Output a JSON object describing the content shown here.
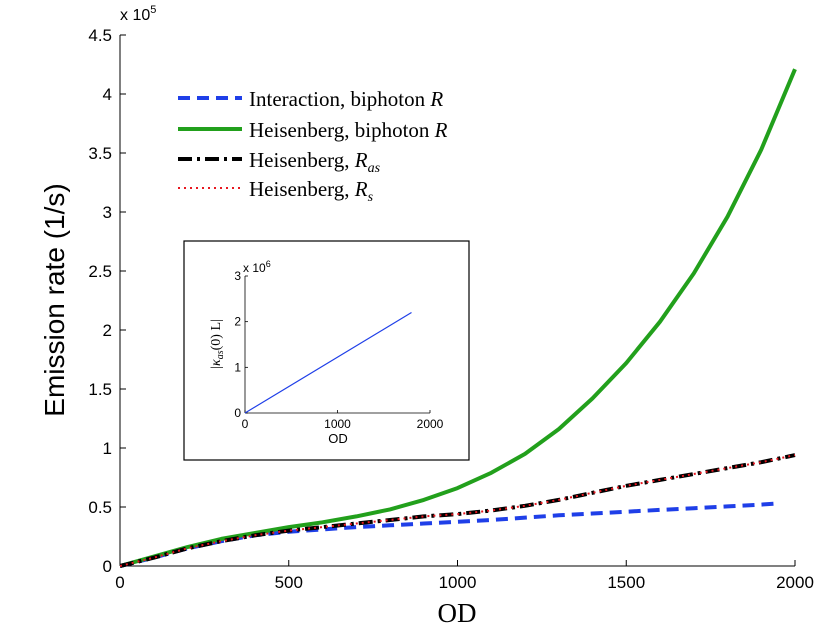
{
  "chart_data": {
    "type": "line",
    "xlabel": "OD",
    "ylabel": "Emission rate (1/s)",
    "y_multiplier": "x 10^5",
    "y_multiplier_base": "x 10",
    "y_multiplier_exp": "5",
    "xlim": [
      0,
      2000
    ],
    "ylim": [
      0,
      4.5
    ],
    "xticks": [
      0,
      500,
      1000,
      1500,
      2000
    ],
    "xtick_labels": [
      "0",
      "500",
      "1000",
      "1500",
      "2000"
    ],
    "yticks": [
      0,
      0.5,
      1,
      1.5,
      2,
      2.5,
      3,
      3.5,
      4,
      4.5
    ],
    "ytick_labels": [
      "0",
      "0.5",
      "1",
      "1.5",
      "2",
      "2.5",
      "3",
      "3.5",
      "4",
      "4.5"
    ],
    "legend": {
      "position": "top-left",
      "entries": [
        {
          "text": "Interaction, biphoton",
          "sym": "R",
          "sub": ""
        },
        {
          "text": "Heisenberg, biphoton",
          "sym": "R",
          "sub": ""
        },
        {
          "text": "Heisenberg,",
          "sym": "R",
          "sub": "as"
        },
        {
          "text": "Heisenberg,",
          "sym": "R",
          "sub": "s"
        }
      ]
    },
    "series": [
      {
        "name": "Interaction, biphoton R",
        "color": "#1f3fe8",
        "style": "dashed",
        "x": [
          0,
          100,
          200,
          300,
          400,
          500,
          600,
          700,
          800,
          900,
          1000,
          1100,
          1200,
          1300,
          1400,
          1500,
          1600,
          1700,
          1800,
          1900,
          1950
        ],
        "y": [
          0,
          0.07,
          0.15,
          0.21,
          0.26,
          0.29,
          0.31,
          0.33,
          0.345,
          0.36,
          0.375,
          0.39,
          0.41,
          0.43,
          0.445,
          0.46,
          0.475,
          0.49,
          0.505,
          0.52,
          0.53
        ]
      },
      {
        "name": "Heisenberg, biphoton R",
        "color": "#22a01c",
        "style": "solid",
        "x": [
          0,
          100,
          200,
          300,
          400,
          500,
          600,
          700,
          800,
          900,
          1000,
          1100,
          1200,
          1300,
          1400,
          1500,
          1600,
          1700,
          1800,
          1900,
          2000
        ],
        "y": [
          0,
          0.08,
          0.16,
          0.23,
          0.28,
          0.33,
          0.37,
          0.42,
          0.48,
          0.56,
          0.66,
          0.79,
          0.95,
          1.16,
          1.42,
          1.72,
          2.07,
          2.48,
          2.96,
          3.53,
          4.21
        ]
      },
      {
        "name": "Heisenberg, R_as",
        "color": "#000000",
        "style": "dashdot",
        "x": [
          0,
          100,
          200,
          300,
          400,
          500,
          600,
          700,
          800,
          900,
          1000,
          1100,
          1200,
          1300,
          1400,
          1500,
          1600,
          1700,
          1800,
          1900,
          2000
        ],
        "y": [
          0,
          0.07,
          0.15,
          0.21,
          0.26,
          0.3,
          0.33,
          0.36,
          0.39,
          0.42,
          0.44,
          0.47,
          0.51,
          0.56,
          0.62,
          0.68,
          0.73,
          0.78,
          0.83,
          0.88,
          0.94
        ]
      },
      {
        "name": "Heisenberg, R_s",
        "color": "#e8171f",
        "style": "dotted",
        "x": [
          0,
          100,
          200,
          300,
          400,
          500,
          600,
          700,
          800,
          900,
          1000,
          1100,
          1200,
          1300,
          1400,
          1500,
          1600,
          1700,
          1800,
          1900,
          2000
        ],
        "y": [
          0,
          0.07,
          0.15,
          0.21,
          0.26,
          0.3,
          0.33,
          0.36,
          0.39,
          0.42,
          0.44,
          0.47,
          0.51,
          0.56,
          0.62,
          0.68,
          0.73,
          0.78,
          0.83,
          0.88,
          0.94
        ]
      }
    ],
    "inset": {
      "type": "line",
      "xlabel": "OD",
      "ylabel": "|κ_as(0) L|",
      "ylabel_parts": {
        "bar": "|",
        "kappa": "κ",
        "sub": "as",
        "rest": "(0) L"
      },
      "y_multiplier_base": "x 10",
      "y_multiplier_exp": "6",
      "xlim": [
        0,
        2000
      ],
      "ylim": [
        0,
        3
      ],
      "xticks": [
        0,
        1000,
        2000
      ],
      "xtick_labels": [
        "0",
        "1000",
        "2000"
      ],
      "yticks": [
        0,
        1,
        2,
        3
      ],
      "ytick_labels": [
        "0",
        "1",
        "2",
        "3"
      ],
      "series": [
        {
          "name": "kappa",
          "color": "#1f3fe8",
          "x": [
            0,
            1800
          ],
          "y": [
            0,
            2.2
          ]
        }
      ]
    }
  }
}
